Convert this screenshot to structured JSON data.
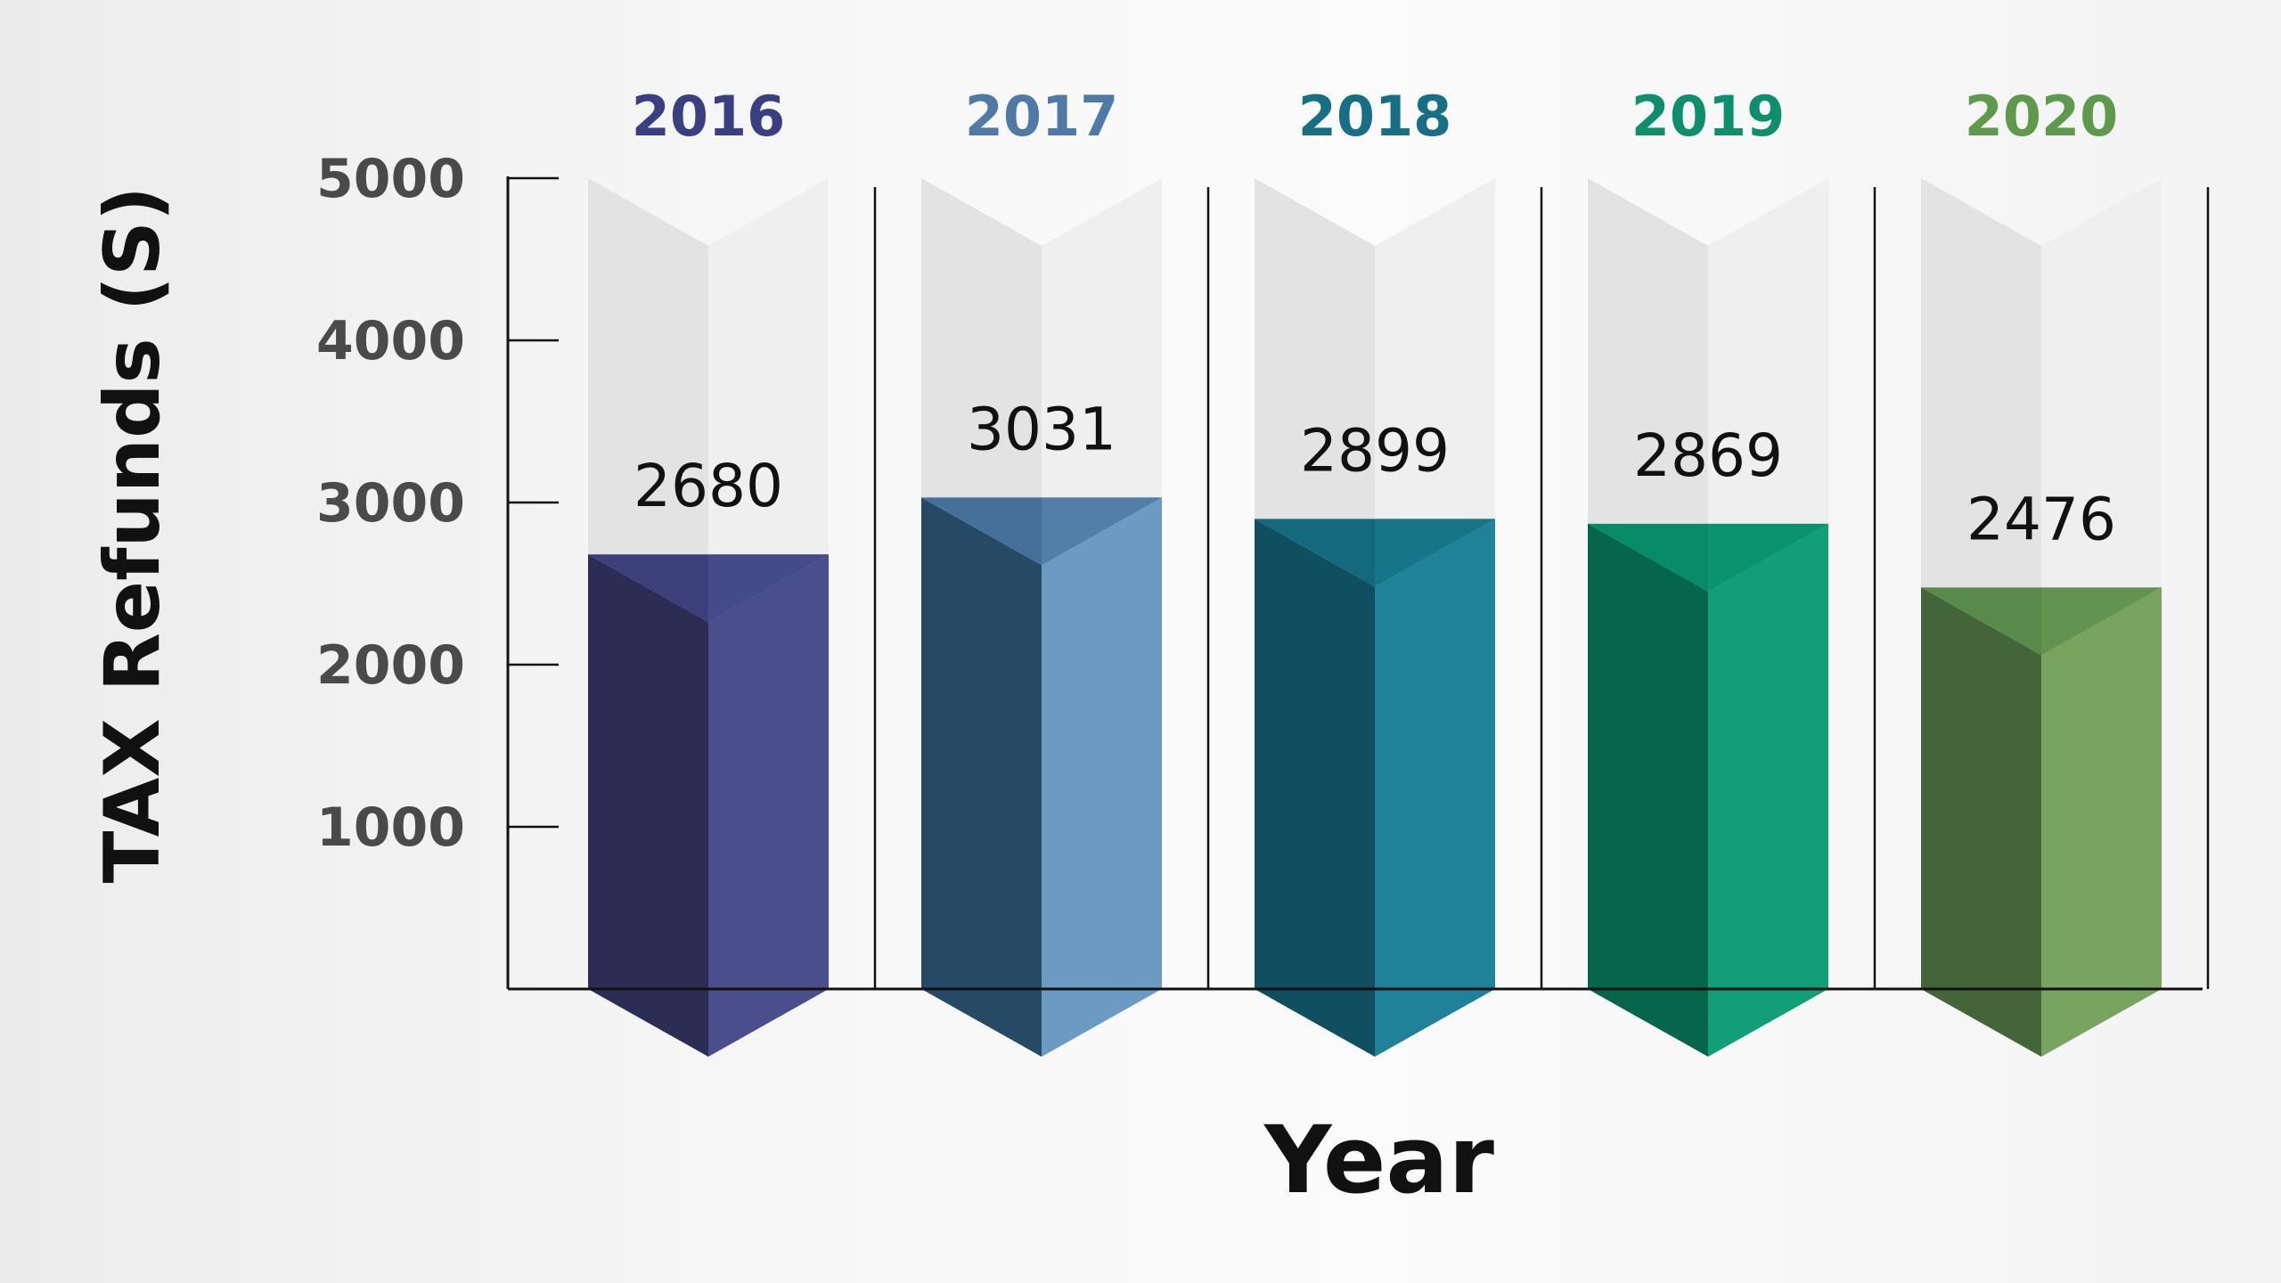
{
  "chart_data": {
    "type": "bar",
    "categories": [
      "2016",
      "2017",
      "2018",
      "2019",
      "2020"
    ],
    "values": [
      2680,
      3031,
      2899,
      2869,
      2476
    ],
    "ylabel": "TAX Refunds (S)",
    "xlabel": "Year",
    "ylim": [
      0,
      5000
    ],
    "yticks": [
      "1000",
      "2000",
      "3000",
      "4000",
      "5000"
    ],
    "grid": false,
    "legend": "none",
    "colors": {
      "category_labels": [
        "#3a3f82",
        "#4f7aa6",
        "#166f85",
        "#0c8f6c",
        "#5f9a4c"
      ],
      "front_left": [
        "#2c2d54",
        "#264a66",
        "#0f4f5f",
        "#06664c",
        "#44653a"
      ],
      "front_right": [
        "#4a4f8c",
        "#6b9bc2",
        "#1f8299",
        "#119f7a",
        "#78a45f"
      ],
      "top_left": [
        "#3b3f7a",
        "#44709a",
        "#146a7c",
        "#078a66",
        "#5a8a4b"
      ],
      "top_right": [
        "#4e5394",
        "#5f8cb5",
        "#1a7e92",
        "#0d9a74",
        "#6a9b55"
      ],
      "ghost_left": "#e3e3e3",
      "ghost_right": "#efefef",
      "axis": "#111111"
    }
  }
}
